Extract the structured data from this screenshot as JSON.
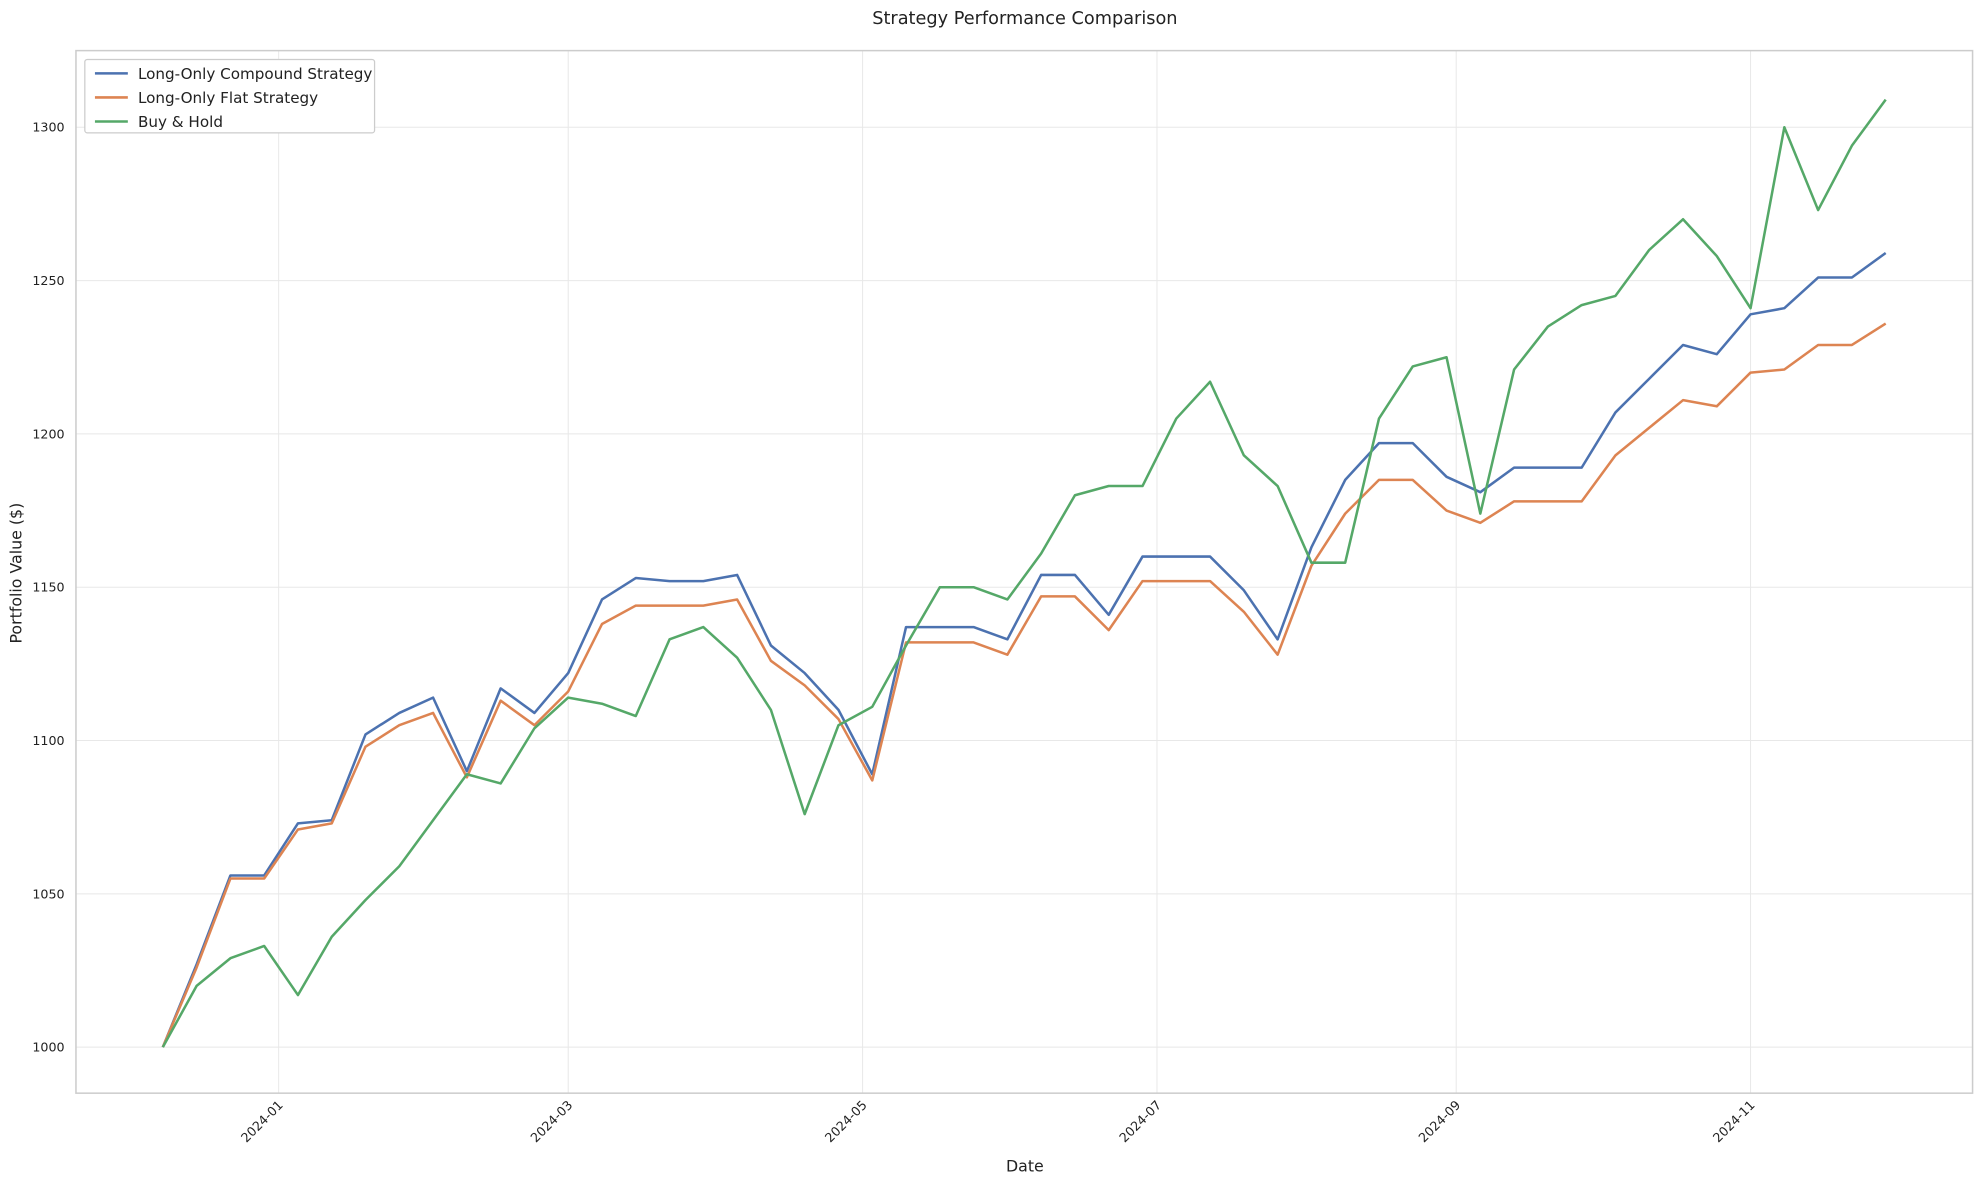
{
  "chart_data": {
    "type": "line",
    "title": "Strategy Performance Comparison",
    "xlabel": "Date",
    "ylabel": "Portfolio Value ($)",
    "x": [
      "2023-12-08",
      "2023-12-15",
      "2023-12-22",
      "2023-12-29",
      "2024-01-05",
      "2024-01-12",
      "2024-01-19",
      "2024-01-26",
      "2024-02-02",
      "2024-02-09",
      "2024-02-16",
      "2024-02-23",
      "2024-03-01",
      "2024-03-08",
      "2024-03-15",
      "2024-03-22",
      "2024-03-29",
      "2024-04-05",
      "2024-04-12",
      "2024-04-19",
      "2024-04-26",
      "2024-05-03",
      "2024-05-10",
      "2024-05-17",
      "2024-05-24",
      "2024-05-31",
      "2024-06-07",
      "2024-06-14",
      "2024-06-21",
      "2024-06-28",
      "2024-07-05",
      "2024-07-12",
      "2024-07-19",
      "2024-07-26",
      "2024-08-02",
      "2024-08-09",
      "2024-08-16",
      "2024-08-23",
      "2024-08-30",
      "2024-09-06",
      "2024-09-13",
      "2024-09-20",
      "2024-09-27",
      "2024-10-04",
      "2024-10-11",
      "2024-10-18",
      "2024-10-25",
      "2024-11-01",
      "2024-11-08",
      "2024-11-15",
      "2024-11-22",
      "2024-11-29"
    ],
    "series": [
      {
        "name": "Long-Only Compound Strategy",
        "color": "#4c72b0",
        "values": [
          1000,
          1027,
          1056,
          1056,
          1073,
          1074,
          1102,
          1109,
          1114,
          1090,
          1117,
          1109,
          1122,
          1146,
          1153,
          1152,
          1152,
          1154,
          1131,
          1122,
          1110,
          1089,
          1137,
          1137,
          1137,
          1133,
          1154,
          1154,
          1141,
          1160,
          1160,
          1160,
          1149,
          1133,
          1163,
          1185,
          1197,
          1197,
          1186,
          1181,
          1189,
          1189,
          1189,
          1207,
          1218,
          1229,
          1226,
          1239,
          1241,
          1251,
          1251,
          1259
        ]
      },
      {
        "name": "Long-Only Flat Strategy",
        "color": "#dd8452",
        "values": [
          1000,
          1026,
          1055,
          1055,
          1071,
          1073,
          1098,
          1105,
          1109,
          1088,
          1113,
          1105,
          1116,
          1138,
          1144,
          1144,
          1144,
          1146,
          1126,
          1118,
          1107,
          1087,
          1132,
          1132,
          1132,
          1128,
          1147,
          1147,
          1136,
          1152,
          1152,
          1152,
          1142,
          1128,
          1157,
          1174,
          1185,
          1185,
          1175,
          1171,
          1178,
          1178,
          1178,
          1193,
          1202,
          1211,
          1209,
          1220,
          1221,
          1229,
          1229,
          1236
        ]
      },
      {
        "name": "Buy & Hold",
        "color": "#55a868",
        "values": [
          1000,
          1020,
          1029,
          1033,
          1017,
          1036,
          1048,
          1059,
          1074,
          1089,
          1086,
          1104,
          1114,
          1112,
          1108,
          1133,
          1137,
          1127,
          1110,
          1076,
          1105,
          1111,
          1131,
          1150,
          1150,
          1146,
          1161,
          1180,
          1183,
          1183,
          1205,
          1217,
          1193,
          1183,
          1158,
          1158,
          1205,
          1222,
          1225,
          1174,
          1221,
          1235,
          1242,
          1245,
          1260,
          1270,
          1258,
          1241,
          1300,
          1273,
          1294,
          1309
        ]
      }
    ],
    "xlim": [
      "2023-11-20",
      "2024-12-17"
    ],
    "xticks": [
      {
        "value": "2024-01-01",
        "label": "2024-01"
      },
      {
        "value": "2024-03-01",
        "label": "2024-03"
      },
      {
        "value": "2024-05-01",
        "label": "2024-05"
      },
      {
        "value": "2024-07-01",
        "label": "2024-07"
      },
      {
        "value": "2024-09-01",
        "label": "2024-09"
      },
      {
        "value": "2024-11-01",
        "label": "2024-11"
      }
    ],
    "ylim": [
      985,
      1325
    ],
    "yticks": [
      1000,
      1050,
      1100,
      1150,
      1200,
      1250,
      1300
    ],
    "grid": true,
    "legend": "upper left"
  }
}
